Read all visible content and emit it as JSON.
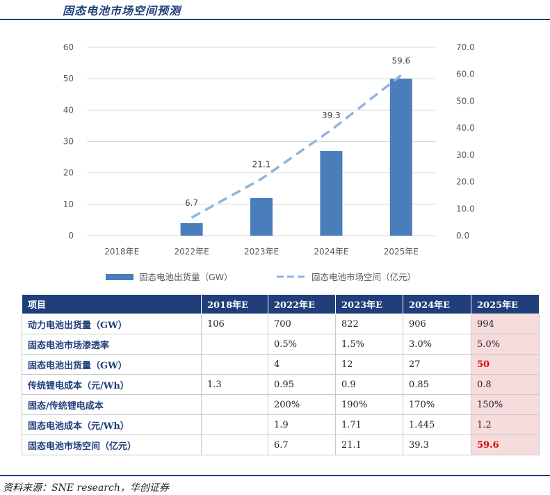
{
  "title": "固态电池市场空间预测",
  "chart_data": {
    "type": "bar+line",
    "categories": [
      "2018年E",
      "2022年E",
      "2023年E",
      "2024年E",
      "2025年E"
    ],
    "series": [
      {
        "name": "固态电池出货量（GW）",
        "type": "bar",
        "axis": "left",
        "values": [
          0,
          4,
          12,
          27,
          50
        ]
      },
      {
        "name": "固态电池市场空间（亿元）",
        "type": "line",
        "style": "dashed",
        "axis": "right",
        "values": [
          null,
          6.7,
          21.1,
          39.3,
          59.6
        ],
        "labels": [
          "",
          "6.7",
          "21.1",
          "39.3",
          "59.6"
        ]
      }
    ],
    "left_axis": {
      "min": 0,
      "max": 60,
      "ticks": [
        "0",
        "10",
        "20",
        "30",
        "40",
        "50",
        "60"
      ]
    },
    "right_axis": {
      "min": 0,
      "max": 70,
      "ticks": [
        "0.0",
        "10.0",
        "20.0",
        "30.0",
        "40.0",
        "50.0",
        "60.0",
        "70.0"
      ]
    },
    "grid": true,
    "legend": "bottom",
    "colors": {
      "bar": "#4a7ebb",
      "line": "#8fb4e0"
    }
  },
  "table": {
    "headers": [
      "项目",
      "2018年E",
      "2022年E",
      "2023年E",
      "2024年E",
      "2025年E"
    ],
    "rows": [
      {
        "label": "动力电池出货量（GW）",
        "values": [
          "106",
          "700",
          "822",
          "906",
          "994"
        ],
        "red": false
      },
      {
        "label": "固态电池市场渗透率",
        "values": [
          "",
          "0.5%",
          "1.5%",
          "3.0%",
          "5.0%"
        ],
        "red": false
      },
      {
        "label": "固态电池出货量（GW）",
        "values": [
          "",
          "4",
          "12",
          "27",
          "50"
        ],
        "red": true
      },
      {
        "label": "传统锂电成本（元/Wh）",
        "values": [
          "1.3",
          "0.95",
          "0.9",
          "0.85",
          "0.8"
        ],
        "red": false
      },
      {
        "label": "固态/传统锂电成本",
        "values": [
          "",
          "200%",
          "190%",
          "170%",
          "150%"
        ],
        "red": false
      },
      {
        "label": "固态电池成本（元/Wh）",
        "values": [
          "",
          "1.9",
          "1.71",
          "1.445",
          "1.2"
        ],
        "red": false
      },
      {
        "label": "固态电池市场空间（亿元）",
        "values": [
          "",
          "6.7",
          "21.1",
          "39.3",
          "59.6"
        ],
        "red": true
      }
    ]
  },
  "source": "资料来源：SNE research，华创证券",
  "colors": {
    "brand": "#1f3e7a",
    "highlight": "#f6dcdc",
    "emphasis": "#d80000"
  }
}
